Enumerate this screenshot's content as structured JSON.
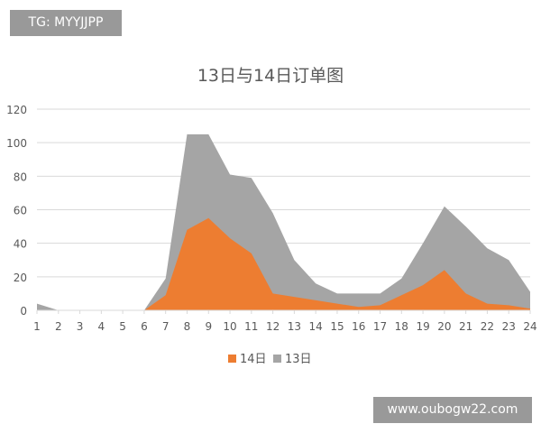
{
  "watermark_top": "TG: MYYJJPP",
  "watermark_bottom": "www.oubogw22.com",
  "chart_data": {
    "type": "area",
    "title": "13日与14日订单图",
    "categories": [
      "1",
      "2",
      "3",
      "4",
      "5",
      "6",
      "7",
      "8",
      "9",
      "10",
      "11",
      "12",
      "13",
      "14",
      "15",
      "16",
      "17",
      "18",
      "19",
      "20",
      "21",
      "22",
      "23",
      "24"
    ],
    "series": [
      {
        "name": "13日",
        "color": "#a5a5a5",
        "values": [
          4,
          0,
          0,
          0,
          0,
          0,
          19,
          105,
          105,
          81,
          79,
          58,
          30,
          16,
          10,
          10,
          10,
          19,
          40,
          62,
          50,
          37,
          30,
          11
        ]
      },
      {
        "name": "14日",
        "color": "#ed7d31",
        "values": [
          0,
          0,
          0,
          0,
          0,
          0,
          9,
          48,
          55,
          43,
          34,
          10,
          8,
          6,
          4,
          2,
          3,
          9,
          15,
          24,
          10,
          4,
          3,
          1
        ]
      }
    ],
    "yticks": [
      "0",
      "20",
      "40",
      "60",
      "80",
      "100",
      "120"
    ],
    "ylim": [
      0,
      120
    ],
    "grid": true,
    "legend": "bottom",
    "legend_order": [
      "14日",
      "13日"
    ]
  }
}
